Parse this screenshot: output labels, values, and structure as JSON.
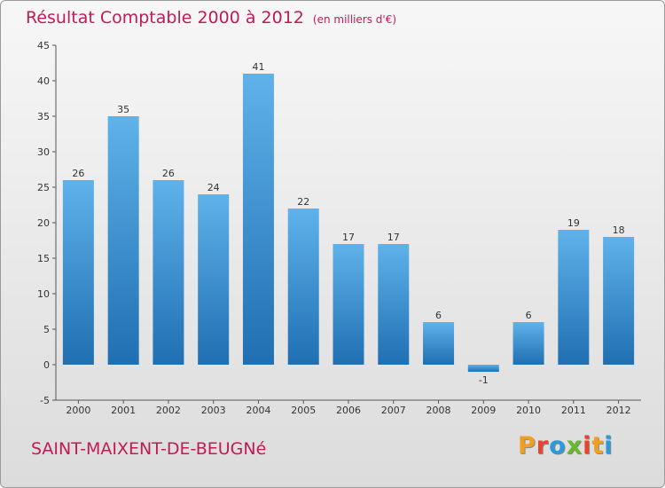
{
  "header": {
    "title": "Résultat Comptable 2000 à 2012",
    "subtitle": "(en milliers d'€)"
  },
  "footer": {
    "commune": "SAINT-MAIXENT-DE-BEUGNé",
    "brand": "Proxiti"
  },
  "colors": {
    "accent": "#c21a56",
    "bar_light": "#5fb2ea",
    "bar_dark": "#1f6fb2"
  },
  "chart_data": {
    "type": "bar",
    "categories": [
      "2000",
      "2001",
      "2002",
      "2003",
      "2004",
      "2005",
      "2006",
      "2007",
      "2008",
      "2009",
      "2010",
      "2011",
      "2012"
    ],
    "values": [
      26,
      35,
      26,
      24,
      41,
      22,
      17,
      17,
      6,
      -1,
      6,
      19,
      18
    ],
    "data_labels": [
      "26",
      "35",
      "26",
      "24",
      "41",
      "22",
      "17",
      "17",
      "6",
      "-1",
      "6",
      "19",
      "18"
    ],
    "yticks": [
      -5,
      0,
      5,
      10,
      15,
      20,
      25,
      30,
      35,
      40,
      45
    ],
    "ylim": [
      -5,
      45
    ],
    "grid": false,
    "title": "Résultat Comptable 2000 à 2012",
    "xlabel": "",
    "ylabel": ""
  }
}
